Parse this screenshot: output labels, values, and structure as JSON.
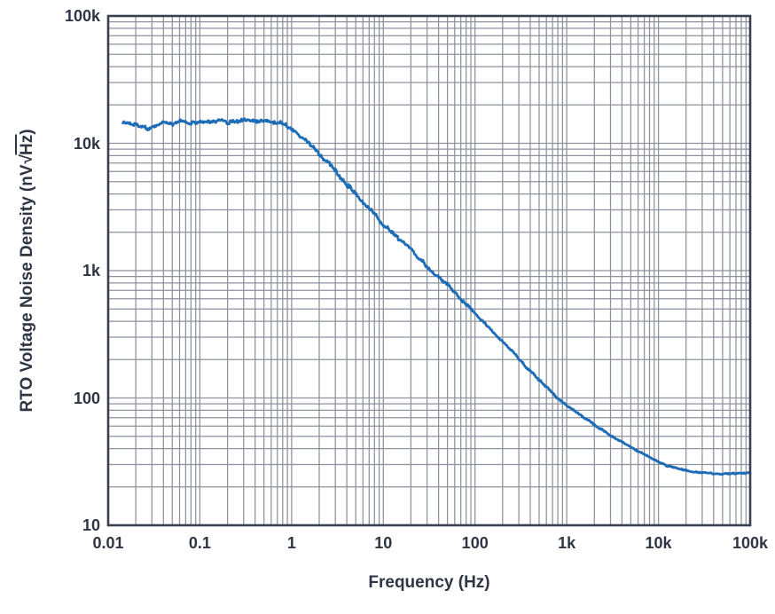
{
  "figure": {
    "background": "#ffffff",
    "text_color": "#2e3644"
  },
  "chart_data": {
    "type": "line",
    "title": "",
    "xlabel": "Frequency (Hz)",
    "ylabel": "RTO Voltage Noise Density (nV√Hz)",
    "ylabel_parts": {
      "prefix": "RTO Voltage Noise Density (nV",
      "sqrt": "√",
      "radicand": "Hz",
      "suffix": ")"
    },
    "x_scale": "log",
    "y_scale": "log",
    "x_range": [
      0.01,
      100000
    ],
    "y_range": [
      10,
      100000
    ],
    "x_ticks": [
      {
        "value": 0.01,
        "label": "0.01"
      },
      {
        "value": 0.1,
        "label": "0.1"
      },
      {
        "value": 1,
        "label": "1"
      },
      {
        "value": 10,
        "label": "10"
      },
      {
        "value": 100,
        "label": "100"
      },
      {
        "value": 1000,
        "label": "1k"
      },
      {
        "value": 10000,
        "label": "10k"
      },
      {
        "value": 100000,
        "label": "100k"
      }
    ],
    "y_ticks": [
      {
        "value": 100000,
        "label": "100k"
      },
      {
        "value": 10000,
        "label": "10k"
      },
      {
        "value": 1000,
        "label": "1k"
      },
      {
        "value": 100,
        "label": "100"
      },
      {
        "value": 10,
        "label": "10"
      }
    ],
    "grid": {
      "minor": true,
      "line_color": "#8d929b",
      "border_color": "#394150"
    },
    "legend": "none",
    "series": [
      {
        "name": "RTO voltage noise density",
        "color": "#1c6cb8",
        "points_f_v_jitter": [
          [
            0.0145,
            14600,
            0.01
          ],
          [
            0.018,
            14300,
            0.011
          ],
          [
            0.022,
            13700,
            0.012
          ],
          [
            0.027,
            13100,
            0.012
          ],
          [
            0.033,
            14000,
            0.012
          ],
          [
            0.04,
            14700,
            0.012
          ],
          [
            0.05,
            14200,
            0.012
          ],
          [
            0.06,
            15200,
            0.012
          ],
          [
            0.072,
            14500,
            0.012
          ],
          [
            0.085,
            14400,
            0.012
          ],
          [
            0.1,
            14800,
            0.013
          ],
          [
            0.13,
            14500,
            0.013
          ],
          [
            0.16,
            15000,
            0.013
          ],
          [
            0.2,
            14600,
            0.014
          ],
          [
            0.25,
            14900,
            0.014
          ],
          [
            0.32,
            15100,
            0.014
          ],
          [
            0.4,
            14700,
            0.014
          ],
          [
            0.5,
            15000,
            0.015
          ],
          [
            0.63,
            14800,
            0.015
          ],
          [
            0.8,
            14200,
            0.015
          ],
          [
            1.0,
            12800,
            0.016
          ],
          [
            1.26,
            11400,
            0.017
          ],
          [
            1.6,
            9900,
            0.017
          ],
          [
            2.0,
            8400,
            0.018
          ],
          [
            2.5,
            7000,
            0.018
          ],
          [
            3.16,
            5700,
            0.018
          ],
          [
            4.0,
            4700,
            0.018
          ],
          [
            5.0,
            4000,
            0.017
          ],
          [
            6.3,
            3300,
            0.016
          ],
          [
            7.9,
            2800,
            0.016
          ],
          [
            10,
            2300,
            0.015
          ],
          [
            12.6,
            1960,
            0.015
          ],
          [
            15.8,
            1700,
            0.014
          ],
          [
            20,
            1490,
            0.014
          ],
          [
            25,
            1240,
            0.013
          ],
          [
            31.6,
            1040,
            0.013
          ],
          [
            39.8,
            890,
            0.012
          ],
          [
            50.1,
            770,
            0.012
          ],
          [
            63.1,
            650,
            0.011
          ],
          [
            79.4,
            545,
            0.011
          ],
          [
            100,
            460,
            0.01
          ],
          [
            126,
            388,
            0.01
          ],
          [
            158,
            328,
            0.01
          ],
          [
            200,
            278,
            0.009
          ],
          [
            251,
            236,
            0.009
          ],
          [
            316,
            193,
            0.009
          ],
          [
            398,
            163,
            0.009
          ],
          [
            501,
            138,
            0.008
          ],
          [
            631,
            118,
            0.008
          ],
          [
            794,
            100,
            0.008
          ],
          [
            1000,
            88,
            0.008
          ],
          [
            1259,
            78,
            0.007
          ],
          [
            1585,
            69,
            0.007
          ],
          [
            2000,
            62,
            0.007
          ],
          [
            2512,
            55,
            0.007
          ],
          [
            3162,
            50,
            0.006
          ],
          [
            3981,
            45,
            0.006
          ],
          [
            5012,
            41,
            0.006
          ],
          [
            6310,
            37.5,
            0.006
          ],
          [
            7943,
            34.5,
            0.006
          ],
          [
            10000,
            31.5,
            0.006
          ],
          [
            12589,
            29.3,
            0.006
          ],
          [
            15849,
            27.9,
            0.005
          ],
          [
            19953,
            26.9,
            0.005
          ],
          [
            25119,
            26.2,
            0.005
          ],
          [
            31623,
            25.8,
            0.005
          ],
          [
            39811,
            25.5,
            0.005
          ],
          [
            50119,
            25.3,
            0.005
          ],
          [
            63096,
            25.5,
            0.005
          ],
          [
            79433,
            25.8,
            0.005
          ],
          [
            100000,
            25.6,
            0.005
          ]
        ]
      }
    ]
  }
}
